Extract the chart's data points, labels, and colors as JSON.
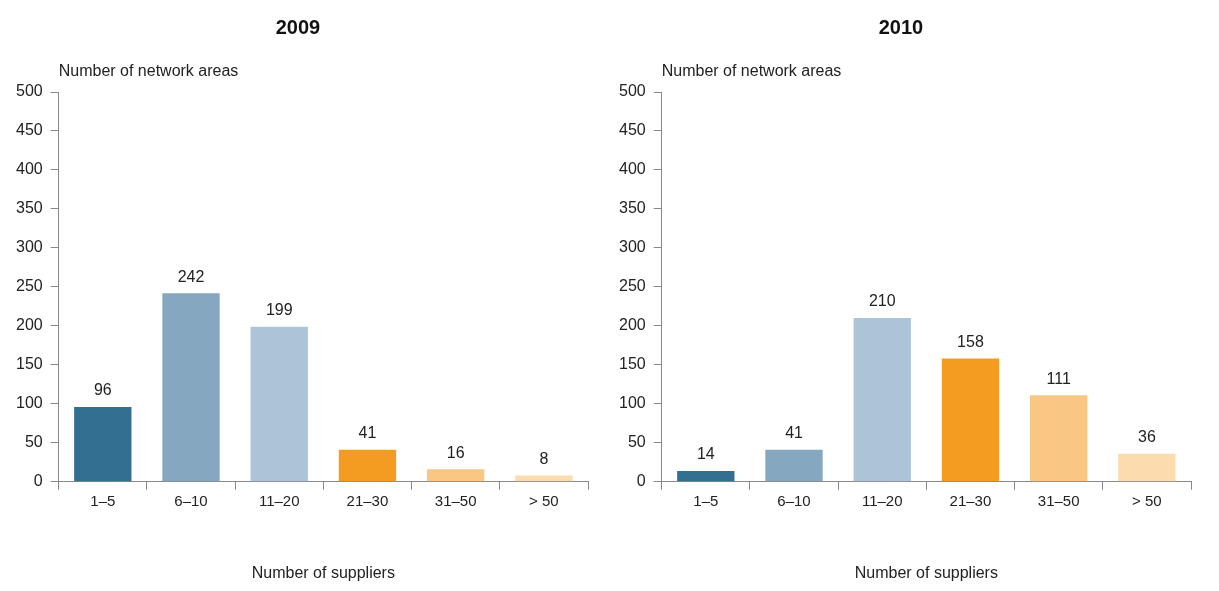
{
  "chart_data": [
    {
      "type": "bar",
      "title": "2009",
      "ylabel": "Number of network areas",
      "xlabel": "Number of suppliers",
      "categories": [
        "1–5",
        "6–10",
        "11–20",
        "21–30",
        "31–50",
        "> 50"
      ],
      "values": [
        96,
        242,
        199,
        41,
        16,
        8
      ],
      "colors": [
        "#336f91",
        "#85a7bf",
        "#adc3d7",
        "#f39c21",
        "#f9c683",
        "#fcdcae"
      ],
      "ylim": [
        0,
        500
      ],
      "yticks": [
        0,
        50,
        100,
        150,
        200,
        250,
        300,
        350,
        400,
        450,
        500
      ],
      "data_labels": true,
      "grid": false,
      "legend": false
    },
    {
      "type": "bar",
      "title": "2010",
      "ylabel": "Number of network areas",
      "xlabel": "Number of suppliers",
      "categories": [
        "1–5",
        "6–10",
        "11–20",
        "21–30",
        "31–50",
        "> 50"
      ],
      "values": [
        14,
        41,
        210,
        158,
        111,
        36
      ],
      "colors": [
        "#336f91",
        "#85a7bf",
        "#adc3d7",
        "#f39c21",
        "#f9c683",
        "#fcdcae"
      ],
      "ylim": [
        0,
        500
      ],
      "yticks": [
        0,
        50,
        100,
        150,
        200,
        250,
        300,
        350,
        400,
        450,
        500
      ],
      "data_labels": true,
      "grid": false,
      "legend": false
    }
  ]
}
